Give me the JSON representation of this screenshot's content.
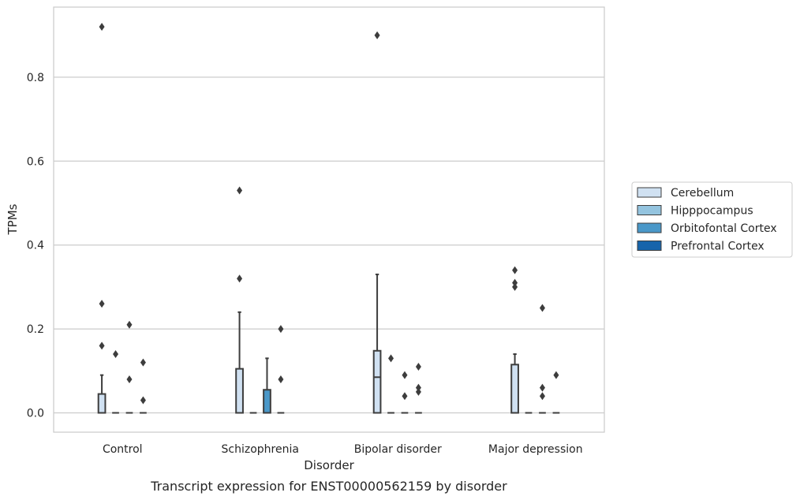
{
  "chart_data": {
    "type": "box",
    "title": "",
    "caption": "Transcript expression for ENST00000562159 by disorder",
    "xlabel": "Disorder",
    "ylabel": "TPMs",
    "ylim": [
      -0.045,
      0.955
    ],
    "yticks": [
      0.0,
      0.2,
      0.4,
      0.6,
      0.8
    ],
    "ytick_labels": [
      "0.0",
      "0.2",
      "0.4",
      "0.6",
      "0.8"
    ],
    "grid": "horizontal",
    "legend_position": "right",
    "categories": [
      "Control",
      "Schizophrenia",
      "Bipolar disorder",
      "Major depression"
    ],
    "series": [
      {
        "name": "Cerebellum",
        "color": "#d0e1f2",
        "boxes": [
          {
            "q1": 0.0,
            "median": 0.0,
            "q3": 0.045,
            "whisker_low": 0.0,
            "whisker_high": 0.09,
            "outliers": [
              0.92,
              0.26,
              0.16
            ]
          },
          {
            "q1": 0.0,
            "median": 0.0,
            "q3": 0.105,
            "whisker_low": 0.0,
            "whisker_high": 0.24,
            "outliers": [
              0.53,
              0.32
            ]
          },
          {
            "q1": 0.0,
            "median": 0.085,
            "q3": 0.148,
            "whisker_low": 0.0,
            "whisker_high": 0.33,
            "outliers": [
              0.9
            ]
          },
          {
            "q1": 0.0,
            "median": 0.0,
            "q3": 0.115,
            "whisker_low": 0.0,
            "whisker_high": 0.14,
            "outliers": [
              0.34,
              0.31,
              0.3
            ]
          }
        ]
      },
      {
        "name": "Hipppocampus",
        "color": "#94c4df",
        "boxes": [
          {
            "q1": 0.0,
            "median": 0.0,
            "q3": 0.0,
            "whisker_low": 0.0,
            "whisker_high": 0.0,
            "outliers": [
              0.14
            ]
          },
          {
            "q1": 0.0,
            "median": 0.0,
            "q3": 0.0,
            "whisker_low": 0.0,
            "whisker_high": 0.0,
            "outliers": []
          },
          {
            "q1": 0.0,
            "median": 0.0,
            "q3": 0.0,
            "whisker_low": 0.0,
            "whisker_high": 0.0,
            "outliers": [
              0.13
            ]
          },
          {
            "q1": 0.0,
            "median": 0.0,
            "q3": 0.0,
            "whisker_low": 0.0,
            "whisker_high": 0.0,
            "outliers": []
          }
        ]
      },
      {
        "name": "Orbitofontal Cortex",
        "color": "#4a98c9",
        "boxes": [
          {
            "q1": 0.0,
            "median": 0.0,
            "q3": 0.0,
            "whisker_low": 0.0,
            "whisker_high": 0.0,
            "outliers": [
              0.21,
              0.08
            ]
          },
          {
            "q1": 0.0,
            "median": 0.0,
            "q3": 0.055,
            "whisker_low": 0.0,
            "whisker_high": 0.13,
            "outliers": []
          },
          {
            "q1": 0.0,
            "median": 0.0,
            "q3": 0.0,
            "whisker_low": 0.0,
            "whisker_high": 0.0,
            "outliers": [
              0.09,
              0.04
            ]
          },
          {
            "q1": 0.0,
            "median": 0.0,
            "q3": 0.0,
            "whisker_low": 0.0,
            "whisker_high": 0.0,
            "outliers": [
              0.25,
              0.06,
              0.04
            ]
          }
        ]
      },
      {
        "name": "Prefrontal Cortex",
        "color": "#1764ab",
        "boxes": [
          {
            "q1": 0.0,
            "median": 0.0,
            "q3": 0.0,
            "whisker_low": 0.0,
            "whisker_high": 0.0,
            "outliers": [
              0.12,
              0.03
            ]
          },
          {
            "q1": 0.0,
            "median": 0.0,
            "q3": 0.0,
            "whisker_low": 0.0,
            "whisker_high": 0.0,
            "outliers": [
              0.2,
              0.08
            ]
          },
          {
            "q1": 0.0,
            "median": 0.0,
            "q3": 0.0,
            "whisker_low": 0.0,
            "whisker_high": 0.0,
            "outliers": [
              0.11,
              0.06,
              0.05
            ]
          },
          {
            "q1": 0.0,
            "median": 0.0,
            "q3": 0.0,
            "whisker_low": 0.0,
            "whisker_high": 0.0,
            "outliers": [
              0.09
            ]
          }
        ]
      }
    ]
  }
}
